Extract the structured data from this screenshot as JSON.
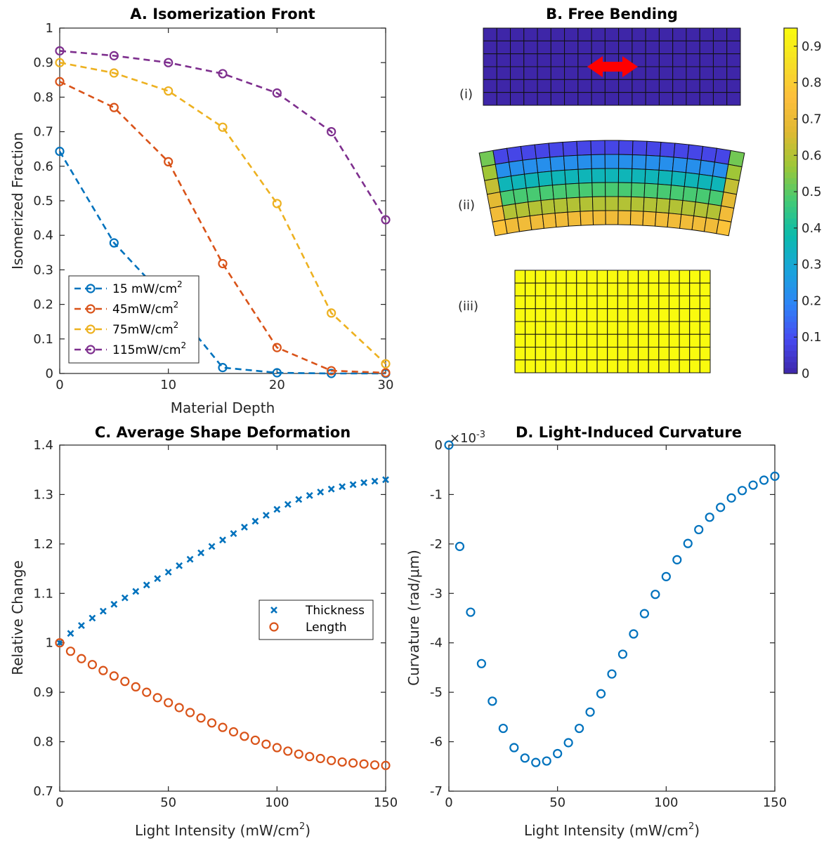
{
  "chart_data": [
    {
      "panel": "A",
      "type": "line",
      "title": "A. Isomerization Front",
      "xlabel": "Material Depth",
      "ylabel": "Isomerized Fraction",
      "xlim": [
        0,
        30
      ],
      "ylim": [
        0,
        1
      ],
      "xticks": [
        0,
        10,
        20,
        30
      ],
      "xtick_labels": [
        "0",
        "10",
        "20",
        "30"
      ],
      "yticks": [
        0,
        0.1,
        0.2,
        0.3,
        0.4,
        0.5,
        0.6,
        0.7,
        0.8,
        0.9,
        1
      ],
      "ytick_labels": [
        "0",
        "0.1",
        "0.2",
        "0.3",
        "0.4",
        "0.5",
        "0.6",
        "0.7",
        "0.8",
        "0.9",
        "1"
      ],
      "legend_position": "bottom-left",
      "x": [
        0,
        5,
        10,
        15,
        20,
        25,
        30
      ],
      "series": [
        {
          "name": "15 mW/cm",
          "sup": "2",
          "color": "#0072BD",
          "values": [
            0.643,
            0.378,
            0.21,
            0.017,
            0.002,
            0.0,
            0.0
          ]
        },
        {
          "name": "45mW/cm",
          "sup": "2",
          "color": "#D95319",
          "values": [
            0.845,
            0.77,
            0.613,
            0.318,
            0.075,
            0.008,
            0.002
          ]
        },
        {
          "name": "75mW/cm",
          "sup": "2",
          "color": "#EDB120",
          "values": [
            0.9,
            0.87,
            0.818,
            0.713,
            0.492,
            0.175,
            0.028
          ]
        },
        {
          "name": "115mW/cm",
          "sup": "2",
          "color": "#7E2F8E",
          "values": [
            0.934,
            0.92,
            0.9,
            0.868,
            0.812,
            0.7,
            0.445
          ]
        }
      ]
    },
    {
      "panel": "B",
      "type": "heatmap",
      "title": "B. Free Bending",
      "colorbar_ticks": [
        0,
        0.1,
        0.2,
        0.3,
        0.4,
        0.5,
        0.6,
        0.7,
        0.8,
        0.9
      ],
      "colorbar_tick_labels": [
        "0",
        "0.1",
        "0.2",
        "0.3",
        "0.4",
        "0.5",
        "0.6",
        "0.7",
        "0.8",
        "0.9"
      ],
      "colorbar_range": [
        0,
        0.95
      ],
      "states": [
        {
          "label": "(i)",
          "value": 0,
          "arrow_color": "#ff0000"
        },
        {
          "label": "(ii)",
          "top_value": 0.0,
          "bottom_value": 0.78
        },
        {
          "label": "(iii)",
          "value": 0.95
        }
      ]
    },
    {
      "panel": "C",
      "type": "scatter",
      "title": "C. Average Shape Deformation",
      "xlabel": "Light Intensity (mW/cm",
      "xlabel_sup": "2",
      "xlabel_end": ")",
      "ylabel": "Relative Change",
      "xlim": [
        0,
        150
      ],
      "ylim": [
        0.7,
        1.4
      ],
      "xticks": [
        0,
        50,
        100,
        150
      ],
      "xtick_labels": [
        "0",
        "50",
        "100",
        "150"
      ],
      "yticks": [
        0.7,
        0.8,
        0.9,
        1.0,
        1.1,
        1.2,
        1.3,
        1.4
      ],
      "ytick_labels": [
        "0.7",
        "0.8",
        "0.9",
        "1",
        "1.1",
        "1.2",
        "1.3",
        "1.4"
      ],
      "legend_position": "center-right",
      "x": [
        0,
        5,
        10,
        15,
        20,
        25,
        30,
        35,
        40,
        45,
        50,
        55,
        60,
        65,
        70,
        75,
        80,
        85,
        90,
        95,
        100,
        105,
        110,
        115,
        120,
        125,
        130,
        135,
        140,
        145,
        150
      ],
      "series": [
        {
          "name": "Thickness",
          "marker": "x",
          "color": "#0072BD",
          "values": [
            1.0,
            1.019,
            1.035,
            1.05,
            1.064,
            1.078,
            1.091,
            1.104,
            1.117,
            1.13,
            1.143,
            1.156,
            1.169,
            1.182,
            1.195,
            1.208,
            1.221,
            1.234,
            1.246,
            1.258,
            1.27,
            1.28,
            1.29,
            1.298,
            1.305,
            1.311,
            1.316,
            1.32,
            1.324,
            1.327,
            1.33
          ]
        },
        {
          "name": "Length",
          "marker": "o",
          "color": "#D95319",
          "values": [
            1.0,
            0.983,
            0.968,
            0.956,
            0.944,
            0.933,
            0.922,
            0.911,
            0.9,
            0.889,
            0.879,
            0.869,
            0.859,
            0.848,
            0.838,
            0.829,
            0.82,
            0.811,
            0.803,
            0.795,
            0.788,
            0.781,
            0.775,
            0.77,
            0.766,
            0.762,
            0.759,
            0.757,
            0.755,
            0.753,
            0.752
          ]
        }
      ]
    },
    {
      "panel": "D",
      "type": "scatter",
      "title": "D. Light-Induced Curvature",
      "xlabel": "Light Intensity (mW/cm",
      "xlabel_sup": "2",
      "xlabel_end": ")",
      "ylabel": "Curvature (rad/μm)",
      "exponent_base": "×10",
      "exponent_power": "-3",
      "xlim": [
        0,
        150
      ],
      "ylim": [
        -7,
        0
      ],
      "xticks": [
        0,
        50,
        100,
        150
      ],
      "xtick_labels": [
        "0",
        "50",
        "100",
        "150"
      ],
      "yticks": [
        -7,
        -6,
        -5,
        -4,
        -3,
        -2,
        -1,
        0
      ],
      "ytick_labels": [
        "-7",
        "-6",
        "-5",
        "-4",
        "-3",
        "-2",
        "-1",
        "0"
      ],
      "x": [
        0,
        5,
        10,
        15,
        20,
        25,
        30,
        35,
        40,
        45,
        50,
        55,
        60,
        65,
        70,
        75,
        80,
        85,
        90,
        95,
        100,
        105,
        110,
        115,
        120,
        125,
        130,
        135,
        140,
        145,
        150
      ],
      "series": [
        {
          "marker": "o",
          "color": "#0072BD",
          "values": [
            0.0,
            -2.05,
            -3.38,
            -4.42,
            -5.18,
            -5.73,
            -6.12,
            -6.33,
            -6.42,
            -6.39,
            -6.24,
            -6.02,
            -5.73,
            -5.4,
            -5.03,
            -4.63,
            -4.23,
            -3.82,
            -3.41,
            -3.02,
            -2.66,
            -2.32,
            -1.99,
            -1.71,
            -1.46,
            -1.26,
            -1.07,
            -0.92,
            -0.81,
            -0.71,
            -0.63
          ]
        }
      ]
    }
  ]
}
